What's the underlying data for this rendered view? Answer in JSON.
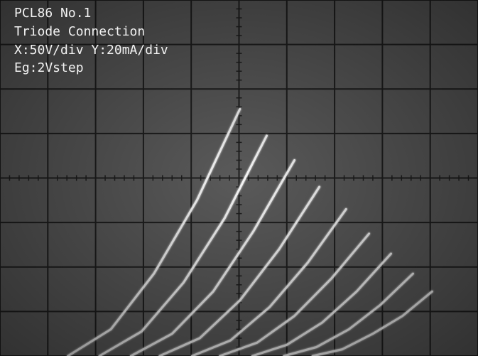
{
  "chart_data": {
    "type": "line",
    "title": "PCL86 No.1",
    "annotations": [
      "Triode Connection",
      "X:50V/div Y:20mA/div",
      "Eg:2Vstep"
    ],
    "xlim": [
      0,
      500
    ],
    "ylim": [
      0,
      160
    ],
    "xticks": [
      0,
      50,
      100,
      150,
      200,
      250,
      300,
      350,
      400,
      450,
      500
    ],
    "yticks": [
      0,
      20,
      40,
      60,
      80,
      100,
      120,
      140,
      160
    ],
    "grid": true,
    "background": "#5a5a5a",
    "grid_color": "#1e1e1e",
    "series": [
      {
        "color": "#f4f4f4",
        "x": [
          71,
          116,
          161,
          206,
          251
        ],
        "values": [
          0,
          12,
          37,
          70,
          111
        ]
      },
      {
        "color": "#f4f4f4",
        "x": [
          104,
          148,
          192,
          235,
          279
        ],
        "values": [
          0,
          11,
          33,
          62,
          99
        ]
      },
      {
        "color": "#f4f4f4",
        "x": [
          137,
          180,
          223,
          265,
          308
        ],
        "values": [
          0,
          10,
          29,
          56,
          88
        ]
      },
      {
        "color": "#f4f4f4",
        "x": [
          167,
          209,
          251,
          292,
          334
        ],
        "values": [
          0,
          8,
          25,
          48,
          76
        ]
      },
      {
        "color": "#f4f4f4",
        "x": [
          201,
          241,
          282,
          322,
          362
        ],
        "values": [
          0,
          7,
          22,
          42,
          66
        ]
      },
      {
        "color": "#f4f4f4",
        "x": [
          230,
          269,
          308,
          347,
          386
        ],
        "values": [
          0,
          6,
          18,
          35,
          55
        ]
      },
      {
        "color": "#f4f4f4",
        "x": [
          264,
          300,
          337,
          373,
          409
        ],
        "values": [
          0,
          5,
          15,
          29,
          46
        ]
      },
      {
        "color": "#f4f4f4",
        "x": [
          297,
          331,
          365,
          398,
          432
        ],
        "values": [
          0,
          4,
          12,
          23,
          37
        ]
      },
      {
        "color": "#f4f4f4",
        "x": [
          327,
          358,
          390,
          421,
          452
        ],
        "values": [
          0,
          3,
          10,
          18,
          29
        ]
      }
    ]
  }
}
